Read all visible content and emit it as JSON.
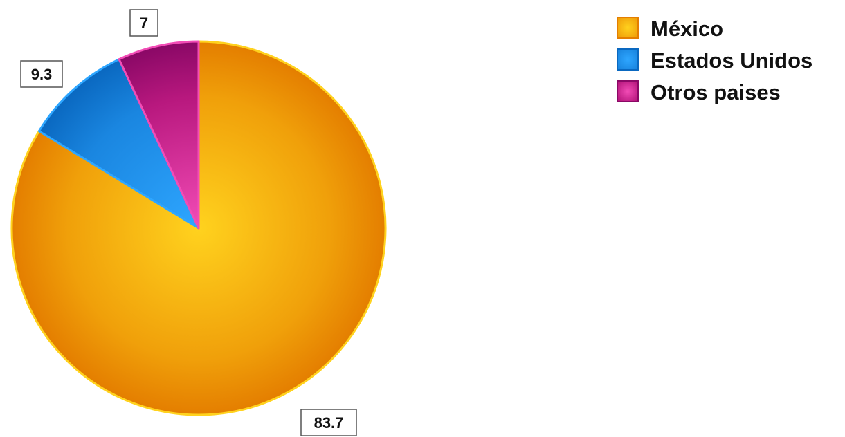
{
  "chart_data": {
    "type": "pie",
    "title": "",
    "legend_position": "top-right",
    "start_angle_deg": 0,
    "direction": "clockwise",
    "slices": [
      {
        "label": "México",
        "value": 83.7,
        "value_label": "83.7",
        "color": "#F0A00A",
        "color_light": "#FFD21E",
        "color_dark": "#E47E00"
      },
      {
        "label": "Estados Unidos",
        "value": 9.3,
        "value_label": "9.3",
        "color": "#1A86E0",
        "color_light": "#2EA6FF",
        "color_dark": "#0A68C0"
      },
      {
        "label": "Otros paises",
        "value": 7,
        "value_label": "7",
        "color": "#B8187E",
        "color_light": "#F24CB6",
        "color_dark": "#8A0866"
      }
    ]
  }
}
